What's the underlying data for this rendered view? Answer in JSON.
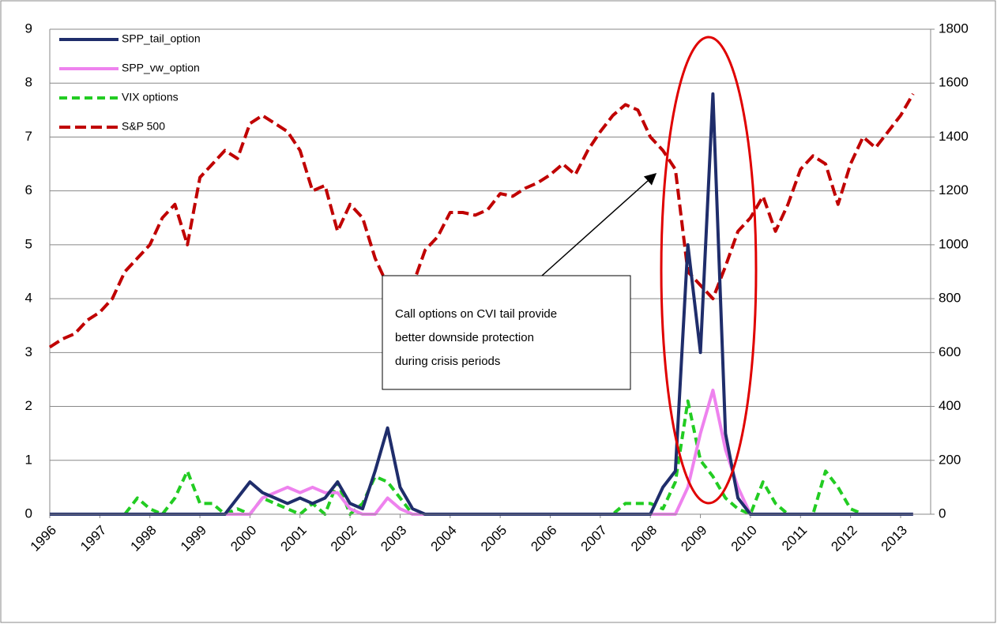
{
  "chart_data": {
    "type": "line",
    "x": [
      1996,
      1996.25,
      1996.5,
      1996.75,
      1997,
      1997.25,
      1997.5,
      1997.75,
      1998,
      1998.25,
      1998.5,
      1998.75,
      1999,
      1999.25,
      1999.5,
      1999.75,
      2000,
      2000.25,
      2000.5,
      2000.75,
      2001,
      2001.25,
      2001.5,
      2001.75,
      2002,
      2002.25,
      2002.5,
      2002.75,
      2003,
      2003.25,
      2003.5,
      2003.75,
      2004,
      2004.25,
      2004.5,
      2004.75,
      2005,
      2005.25,
      2005.5,
      2005.75,
      2006,
      2006.25,
      2006.5,
      2006.75,
      2007,
      2007.25,
      2007.5,
      2007.75,
      2008,
      2008.25,
      2008.5,
      2008.75,
      2009,
      2009.25,
      2009.5,
      2009.75,
      2010,
      2010.25,
      2010.5,
      2010.75,
      2011,
      2011.25,
      2011.5,
      2011.75,
      2012,
      2012.25,
      2012.5,
      2012.75,
      2013,
      2013.25
    ],
    "xlim": [
      1996,
      2013.6
    ],
    "xticks": [
      1996,
      1997,
      1998,
      1999,
      2000,
      2001,
      2002,
      2003,
      2004,
      2005,
      2006,
      2007,
      2008,
      2009,
      2010,
      2011,
      2012,
      2013
    ],
    "ylim": [
      0,
      9
    ],
    "yticks": [
      0,
      1,
      2,
      3,
      4,
      5,
      6,
      7,
      8,
      9
    ],
    "y2lim": [
      0,
      1800
    ],
    "y2ticks": [
      0,
      200,
      400,
      600,
      800,
      1000,
      1200,
      1400,
      1600,
      1800
    ],
    "grid": true,
    "legend": "upper left",
    "series": [
      {
        "name": "SPP_tail_option",
        "color": "#1f2d6b",
        "dash": false,
        "values": [
          0,
          0,
          0,
          0,
          0,
          0,
          0,
          0,
          0,
          0,
          0,
          0,
          0,
          0,
          0,
          0.3,
          0.6,
          0.4,
          0.3,
          0.2,
          0.3,
          0.2,
          0.3,
          0.6,
          0.2,
          0.1,
          0.8,
          1.6,
          0.5,
          0.1,
          0,
          0,
          0,
          0,
          0,
          0,
          0,
          0,
          0,
          0,
          0,
          0,
          0,
          0,
          0,
          0,
          0,
          0,
          0,
          0.5,
          0.8,
          5.0,
          3.0,
          7.8,
          1.5,
          0.3,
          0,
          0,
          0,
          0,
          0,
          0,
          0,
          0,
          0,
          0,
          0,
          0,
          0,
          0
        ]
      },
      {
        "name": "SPP_vw_option",
        "color": "#ee82ee",
        "dash": false,
        "values": [
          0,
          0,
          0,
          0,
          0,
          0,
          0,
          0,
          0,
          0,
          0,
          0,
          0,
          0,
          0,
          0,
          0,
          0.3,
          0.4,
          0.5,
          0.4,
          0.5,
          0.4,
          0.4,
          0.1,
          0,
          0,
          0.3,
          0.1,
          0,
          0,
          0,
          0,
          0,
          0,
          0,
          0,
          0,
          0,
          0,
          0,
          0,
          0,
          0,
          0,
          0,
          0,
          0,
          0,
          0,
          0,
          0.5,
          1.5,
          2.3,
          1.2,
          0.5,
          0,
          0,
          0,
          0,
          0,
          0,
          0,
          0,
          0,
          0,
          0,
          0,
          0,
          0
        ]
      },
      {
        "name": "VIX options",
        "color": "#22cc22",
        "dash": true,
        "values": [
          0,
          0,
          0,
          0,
          0,
          0,
          0,
          0.3,
          0.1,
          0,
          0.3,
          0.8,
          0.2,
          0.2,
          0,
          0.1,
          0,
          0.3,
          0.2,
          0.1,
          0,
          0.2,
          0,
          0.6,
          0,
          0.2,
          0.7,
          0.6,
          0.3,
          0,
          0,
          0,
          0,
          0,
          0,
          0,
          0,
          0,
          0,
          0,
          0,
          0,
          0,
          0,
          0,
          0,
          0.2,
          0.2,
          0.2,
          0.1,
          0.6,
          2.1,
          1.0,
          0.7,
          0.3,
          0.1,
          0,
          0.6,
          0.2,
          0,
          0,
          0,
          0.8,
          0.5,
          0.1,
          0,
          0,
          0,
          0,
          0
        ]
      },
      {
        "name": "S&P 500",
        "color": "#c00000",
        "dash": true,
        "axis": "y2",
        "values": [
          620,
          650,
          670,
          720,
          750,
          800,
          900,
          950,
          1000,
          1100,
          1150,
          1000,
          1250,
          1300,
          1350,
          1320,
          1450,
          1480,
          1450,
          1420,
          1350,
          1200,
          1220,
          1050,
          1150,
          1100,
          950,
          850,
          880,
          850,
          980,
          1030,
          1120,
          1120,
          1110,
          1130,
          1190,
          1180,
          1210,
          1230,
          1260,
          1300,
          1260,
          1350,
          1420,
          1480,
          1520,
          1500,
          1400,
          1350,
          1280,
          900,
          850,
          800,
          920,
          1050,
          1100,
          1180,
          1050,
          1150,
          1280,
          1330,
          1300,
          1150,
          1300,
          1400,
          1360,
          1420,
          1480,
          1560
        ]
      }
    ],
    "annotation": [
      "Call options on CVI tail provide",
      "better downside protection",
      "during crisis periods"
    ]
  }
}
